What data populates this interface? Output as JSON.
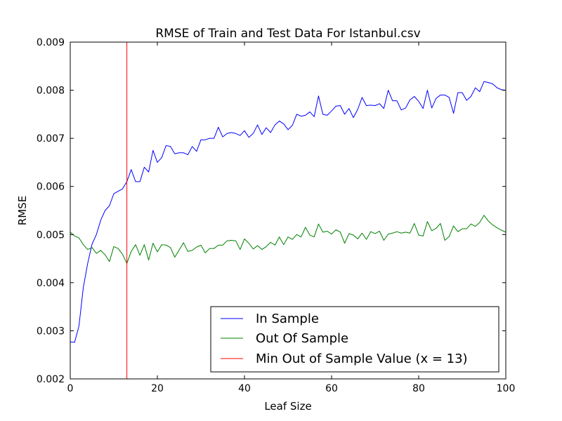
{
  "chart_data": {
    "type": "line",
    "title": "RMSE of Train and Test Data For Istanbul.csv",
    "xlabel": "Leaf Size",
    "ylabel": "RMSE",
    "xlim": [
      0,
      100
    ],
    "ylim": [
      0.002,
      0.009
    ],
    "xticks": [
      0,
      20,
      40,
      60,
      80,
      100
    ],
    "xtick_labels": [
      "0",
      "20",
      "40",
      "60",
      "80",
      "100"
    ],
    "yticks": [
      0.002,
      0.003,
      0.004,
      0.005,
      0.006,
      0.007,
      0.008,
      0.009
    ],
    "ytick_labels": [
      "0.002",
      "0.003",
      "0.004",
      "0.005",
      "0.006",
      "0.007",
      "0.008",
      "0.009"
    ],
    "grid": false,
    "legend_position": "lower-right",
    "x": [
      0,
      1,
      2,
      3,
      4,
      5,
      6,
      7,
      8,
      9,
      10,
      11,
      12,
      13,
      14,
      15,
      16,
      17,
      18,
      19,
      20,
      21,
      22,
      23,
      24,
      25,
      26,
      27,
      28,
      29,
      30,
      31,
      32,
      33,
      34,
      35,
      36,
      37,
      38,
      39,
      40,
      41,
      42,
      43,
      44,
      45,
      46,
      47,
      48,
      49,
      50,
      51,
      52,
      53,
      54,
      55,
      56,
      57,
      58,
      59,
      60,
      61,
      62,
      63,
      64,
      65,
      66,
      67,
      68,
      69,
      70,
      71,
      72,
      73,
      74,
      75,
      76,
      77,
      78,
      79,
      80,
      81,
      82,
      83,
      84,
      85,
      86,
      87,
      88,
      89,
      90,
      91,
      92,
      93,
      94,
      95,
      96,
      97,
      98,
      99,
      100
    ],
    "series": [
      {
        "name": "In Sample",
        "color": "#0000ff",
        "values": [
          0.00277,
          0.00276,
          0.0031,
          0.0039,
          0.0044,
          0.0048,
          0.005,
          0.0053,
          0.0055,
          0.0056,
          0.00585,
          0.0059,
          0.00595,
          0.0061,
          0.00635,
          0.0061,
          0.0061,
          0.0064,
          0.0063,
          0.00675,
          0.0065,
          0.0066,
          0.00685,
          0.00683,
          0.00668,
          0.0067,
          0.0067,
          0.00666,
          0.00683,
          0.00673,
          0.00697,
          0.00697,
          0.007,
          0.007,
          0.00723,
          0.00703,
          0.0071,
          0.00712,
          0.0071,
          0.00706,
          0.00716,
          0.00702,
          0.0071,
          0.00728,
          0.00708,
          0.00722,
          0.00712,
          0.00728,
          0.00736,
          0.0073,
          0.00718,
          0.00727,
          0.0075,
          0.00746,
          0.00748,
          0.00755,
          0.00745,
          0.00788,
          0.0075,
          0.00748,
          0.00757,
          0.00767,
          0.00768,
          0.0075,
          0.00762,
          0.00743,
          0.0076,
          0.00785,
          0.00768,
          0.00769,
          0.00768,
          0.00772,
          0.00762,
          0.008,
          0.00778,
          0.00778,
          0.00759,
          0.00763,
          0.0078,
          0.00787,
          0.00777,
          0.00762,
          0.008,
          0.00763,
          0.00783,
          0.0079,
          0.0079,
          0.00785,
          0.00752,
          0.00795,
          0.00795,
          0.00779,
          0.00787,
          0.00805,
          0.00797,
          0.00818,
          0.00816,
          0.00813,
          0.00805,
          0.00801,
          0.008
        ]
      },
      {
        "name": "Out Of Sample",
        "color": "#008000",
        "values": [
          0.00505,
          0.00497,
          0.00493,
          0.00479,
          0.00469,
          0.00473,
          0.00461,
          0.00467,
          0.00458,
          0.00444,
          0.00475,
          0.00471,
          0.00459,
          0.0044,
          0.00465,
          0.00479,
          0.00457,
          0.00479,
          0.00447,
          0.00482,
          0.00464,
          0.00479,
          0.00478,
          0.00473,
          0.00453,
          0.00468,
          0.00483,
          0.00465,
          0.00467,
          0.00474,
          0.00478,
          0.00462,
          0.00471,
          0.00471,
          0.00478,
          0.00478,
          0.00487,
          0.00488,
          0.00487,
          0.00469,
          0.00491,
          0.00482,
          0.0047,
          0.00477,
          0.00469,
          0.00475,
          0.00484,
          0.00478,
          0.00495,
          0.00479,
          0.00495,
          0.0049,
          0.005,
          0.00495,
          0.00515,
          0.00499,
          0.00495,
          0.00522,
          0.00505,
          0.00507,
          0.00501,
          0.0051,
          0.00505,
          0.00482,
          0.00502,
          0.00499,
          0.00491,
          0.00503,
          0.0049,
          0.00506,
          0.00502,
          0.00507,
          0.00488,
          0.00501,
          0.00503,
          0.00506,
          0.00503,
          0.00505,
          0.00503,
          0.00523,
          0.00499,
          0.00497,
          0.00527,
          0.00508,
          0.00513,
          0.00523,
          0.00488,
          0.00496,
          0.00518,
          0.00506,
          0.00512,
          0.00512,
          0.00522,
          0.00517,
          0.00525,
          0.0054,
          0.00528,
          0.0052,
          0.00514,
          0.00509,
          0.00505
        ]
      }
    ],
    "vline": {
      "name": "Min Out of Sample Value (x = 13)",
      "x": 13,
      "color": "#ff0000"
    },
    "legend": [
      {
        "label": "In Sample",
        "color": "#0000ff"
      },
      {
        "label": "Out Of Sample",
        "color": "#008000"
      },
      {
        "label": "Min Out of Sample Value (x = 13)",
        "color": "#ff0000"
      }
    ]
  }
}
